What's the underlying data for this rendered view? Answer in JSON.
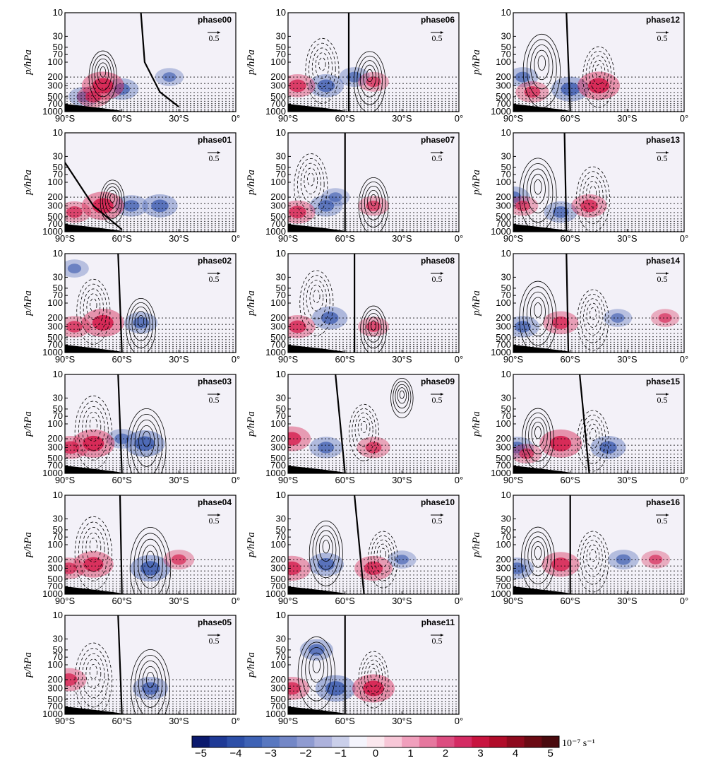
{
  "chart_data": {
    "type": "heatmap",
    "layout": "panel grid, 3 columns",
    "ylabel": "p/hPa",
    "y_axis": {
      "scale": "log",
      "ticks": [
        10,
        30,
        50,
        70,
        100,
        200,
        300,
        500,
        700,
        1000
      ],
      "range": [
        1000,
        10
      ]
    },
    "x_axis": {
      "ticks": [
        "90°S",
        "60°S",
        "30°S",
        "0°"
      ],
      "range": [
        -90,
        0
      ]
    },
    "reference_vector": "0.5",
    "contours": "solid positive, dashed negative, bold zero line",
    "stippling": "significance dots below 200 hPa",
    "colorbar": {
      "ticks": [
        "−5",
        "−4",
        "−3",
        "−2",
        "−1",
        "0",
        "1",
        "2",
        "3",
        "4",
        "5"
      ],
      "unit": "10⁻⁷ s⁻¹",
      "colors": [
        "#0b1a6e",
        "#1f3a96",
        "#2d4fa8",
        "#3e62b5",
        "#5877c0",
        "#7387c7",
        "#8f9bd1",
        "#adb2dc",
        "#cacfea",
        "#f4f4fc",
        "#fbe8ee",
        "#f7c7d7",
        "#f09fbc",
        "#e6779e",
        "#dc4d80",
        "#d42b63",
        "#c8143f",
        "#b10c2a",
        "#8e0a1e",
        "#6b0a14",
        "#4a0a0e"
      ]
    },
    "panels": [
      {
        "label": "phase00",
        "red": [
          [
            -70,
            300,
            1.0
          ],
          [
            -75,
            500,
            0.6
          ]
        ],
        "blue": [
          [
            -60,
            350,
            0.6
          ],
          [
            -35,
            200,
            0.4
          ],
          [
            -80,
            500,
            0.5
          ]
        ],
        "solid": [
          [
            -70,
            200,
            0.45
          ]
        ],
        "dashed": [],
        "zero": [
          [
            -50,
            10
          ],
          [
            -48,
            100
          ],
          [
            -40,
            400
          ],
          [
            -30,
            800
          ]
        ]
      },
      {
        "label": "phase06",
        "red": [
          [
            -85,
            300,
            0.7
          ],
          [
            -45,
            250,
            0.5
          ]
        ],
        "blue": [
          [
            -70,
            300,
            0.7
          ],
          [
            -55,
            200,
            0.5
          ]
        ],
        "solid": [
          [
            -47,
            250,
            0.55
          ]
        ],
        "dashed": [
          [
            -72,
            150,
            0.6
          ]
        ],
        "zero": [
          [
            -58,
            10
          ],
          [
            -58,
            1000
          ]
        ]
      },
      {
        "label": "phase12",
        "red": [
          [
            -45,
            300,
            1.0
          ],
          [
            -80,
            400,
            0.6
          ]
        ],
        "blue": [
          [
            -60,
            350,
            0.8
          ],
          [
            -85,
            200,
            0.5
          ]
        ],
        "solid": [
          [
            -75,
            150,
            0.7
          ]
        ],
        "dashed": [
          [
            -45,
            200,
            0.55
          ]
        ],
        "zero": [
          [
            -62,
            10
          ],
          [
            -60,
            1000
          ]
        ]
      },
      {
        "label": "phase01",
        "red": [
          [
            -70,
            300,
            1.0
          ],
          [
            -85,
            400,
            0.6
          ]
        ],
        "blue": [
          [
            -40,
            300,
            0.7
          ],
          [
            -55,
            300,
            0.6
          ]
        ],
        "solid": [
          [
            -65,
            250,
            0.35
          ]
        ],
        "dashed": [],
        "zero": [
          [
            -90,
            40
          ],
          [
            -75,
            300
          ],
          [
            -60,
            900
          ]
        ]
      },
      {
        "label": "phase07",
        "red": [
          [
            -85,
            400,
            0.7
          ],
          [
            -45,
            300,
            0.5
          ]
        ],
        "blue": [
          [
            -70,
            300,
            0.6
          ],
          [
            -65,
            200,
            0.4
          ]
        ],
        "solid": [
          [
            -45,
            300,
            0.5
          ]
        ],
        "dashed": [
          [
            -78,
            120,
            0.6
          ]
        ],
        "zero": [
          [
            -60,
            10
          ],
          [
            -60,
            1000
          ]
        ]
      },
      {
        "label": "phase13",
        "red": [
          [
            -50,
            300,
            0.7
          ],
          [
            -85,
            300,
            0.5
          ]
        ],
        "blue": [
          [
            -65,
            400,
            0.6
          ],
          [
            -90,
            200,
            0.6
          ]
        ],
        "solid": [
          [
            -77,
            180,
            0.7
          ]
        ],
        "dashed": [
          [
            -48,
            220,
            0.6
          ]
        ],
        "zero": [
          [
            -63,
            10
          ],
          [
            -62,
            1000
          ]
        ]
      },
      {
        "label": "phase02",
        "red": [
          [
            -70,
            250,
            1.0
          ],
          [
            -85,
            300,
            0.6
          ]
        ],
        "blue": [
          [
            -50,
            250,
            0.6
          ],
          [
            -85,
            20,
            0.4
          ]
        ],
        "solid": [
          [
            -50,
            300,
            0.5
          ]
        ],
        "dashed": [
          [
            -75,
            150,
            0.6
          ]
        ],
        "zero": [
          [
            -62,
            10
          ],
          [
            -60,
            1000
          ]
        ]
      },
      {
        "label": "phase08",
        "red": [
          [
            -85,
            300,
            0.7
          ],
          [
            -45,
            300,
            0.5
          ]
        ],
        "blue": [
          [
            -68,
            200,
            0.7
          ]
        ],
        "solid": [
          [
            -45,
            350,
            0.4
          ]
        ],
        "dashed": [
          [
            -75,
            100,
            0.6
          ]
        ],
        "zero": [
          [
            -55,
            10
          ],
          [
            -55,
            1000
          ]
        ]
      },
      {
        "label": "phase14",
        "red": [
          [
            -65,
            250,
            0.7
          ],
          [
            -10,
            200,
            0.4
          ]
        ],
        "blue": [
          [
            -85,
            300,
            0.6
          ],
          [
            -35,
            200,
            0.4
          ]
        ],
        "solid": [
          [
            -77,
            200,
            0.7
          ]
        ],
        "dashed": [
          [
            -48,
            220,
            0.55
          ]
        ],
        "zero": [
          [
            -62,
            10
          ],
          [
            -61,
            1000
          ]
        ]
      },
      {
        "label": "phase03",
        "red": [
          [
            -75,
            250,
            1.0
          ],
          [
            -87,
            300,
            0.7
          ]
        ],
        "blue": [
          [
            -48,
            250,
            0.9
          ],
          [
            -60,
            200,
            0.5
          ]
        ],
        "solid": [
          [
            -47,
            300,
            0.75
          ]
        ],
        "dashed": [
          [
            -75,
            150,
            0.7
          ]
        ],
        "zero": [
          [
            -62,
            10
          ],
          [
            -60,
            1000
          ]
        ]
      },
      {
        "label": "phase09",
        "red": [
          [
            -88,
            200,
            0.8
          ],
          [
            -45,
            300,
            0.6
          ]
        ],
        "blue": [
          [
            -70,
            300,
            0.6
          ]
        ],
        "solid": [
          [
            -30,
            30,
            0.3
          ]
        ],
        "dashed": [
          [
            -50,
            150,
            0.5
          ]
        ],
        "zero": [
          [
            -65,
            10
          ],
          [
            -60,
            1000
          ]
        ]
      },
      {
        "label": "phase15",
        "red": [
          [
            -65,
            250,
            1.0
          ],
          [
            -83,
            400,
            0.5
          ]
        ],
        "blue": [
          [
            -40,
            300,
            0.7
          ],
          [
            -88,
            300,
            0.6
          ]
        ],
        "solid": [
          [
            -77,
            200,
            0.55
          ]
        ],
        "dashed": [
          [
            -48,
            220,
            0.55
          ]
        ],
        "zero": [
          [
            -55,
            10
          ],
          [
            -50,
            1000
          ]
        ]
      },
      {
        "label": "phase04",
        "red": [
          [
            -75,
            250,
            0.9
          ],
          [
            -30,
            200,
            0.5
          ],
          [
            -88,
            300,
            0.6
          ]
        ],
        "blue": [
          [
            -45,
            300,
            0.9
          ]
        ],
        "solid": [
          [
            -45,
            300,
            0.8
          ]
        ],
        "dashed": [
          [
            -75,
            150,
            0.7
          ]
        ],
        "zero": [
          [
            -61,
            10
          ],
          [
            -60,
            1000
          ]
        ]
      },
      {
        "label": "phase10",
        "red": [
          [
            -88,
            300,
            0.8
          ],
          [
            -45,
            300,
            0.8
          ]
        ],
        "blue": [
          [
            -70,
            250,
            0.7
          ],
          [
            -30,
            200,
            0.4
          ]
        ],
        "solid": [
          [
            -70,
            150,
            0.6
          ]
        ],
        "dashed": [
          [
            -40,
            200,
            0.5
          ]
        ],
        "zero": [
          [
            -55,
            10
          ],
          [
            -50,
            1000
          ]
        ]
      },
      {
        "label": "phase16",
        "red": [
          [
            -65,
            250,
            0.8
          ],
          [
            -15,
            200,
            0.4
          ]
        ],
        "blue": [
          [
            -88,
            300,
            0.6
          ],
          [
            -32,
            200,
            0.5
          ]
        ],
        "solid": [
          [
            -77,
            200,
            0.6
          ]
        ],
        "dashed": [
          [
            -48,
            220,
            0.55
          ]
        ],
        "zero": [
          [
            -60,
            10
          ],
          [
            -60,
            1000
          ]
        ]
      },
      {
        "label": "phase05",
        "red": [
          [
            -88,
            200,
            0.7
          ]
        ],
        "blue": [
          [
            -45,
            300,
            0.7
          ]
        ],
        "solid": [
          [
            -45,
            300,
            0.75
          ]
        ],
        "dashed": [
          [
            -75,
            200,
            0.7
          ]
        ],
        "zero": [
          [
            -62,
            10
          ],
          [
            -60,
            1000
          ]
        ]
      },
      {
        "label": "phase11",
        "red": [
          [
            -45,
            300,
            1.0
          ],
          [
            -88,
            300,
            0.7
          ]
        ],
        "blue": [
          [
            -65,
            300,
            0.9
          ],
          [
            -75,
            50,
            0.6
          ]
        ],
        "solid": [
          [
            -75,
            150,
            0.7
          ]
        ],
        "dashed": [
          [
            -45,
            200,
            0.5
          ]
        ],
        "zero": [
          [
            -60,
            10
          ],
          [
            -60,
            1000
          ]
        ]
      }
    ]
  }
}
